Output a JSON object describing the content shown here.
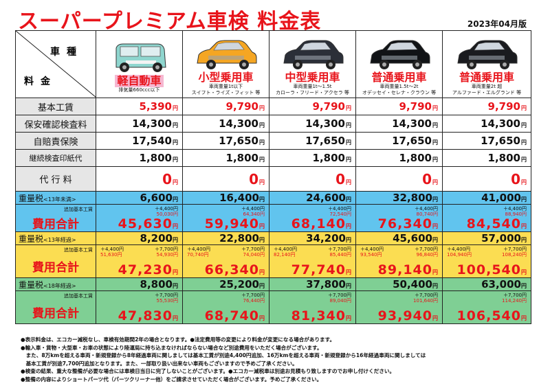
{
  "title": "スーパープレミアム車検 料金表",
  "date": "2023年04月版",
  "corner": {
    "top": "車種",
    "bottom": "料金"
  },
  "vehicles": [
    {
      "name": "軽自動車",
      "desc1": "排気量660ccc以下",
      "desc2": "",
      "color": "#8fd6cf"
    },
    {
      "name": "小型乗用車",
      "desc1": "車両重量1t以下",
      "desc2": "スイフト・ライズ・フィット 等",
      "color": "#f5a623"
    },
    {
      "name": "中型乗用車",
      "desc1": "車両重量1t～1.5t",
      "desc2": "カローラ・フリード・アクセラ 等",
      "color": "#2b2f38"
    },
    {
      "name": "普通乗用車",
      "desc1": "車両重量1.5t～2t",
      "desc2": "オデッセイ・セレナ・クラウン 等",
      "color": "#111316"
    },
    {
      "name": "普通乗用車",
      "desc1": "車両重量2t 超",
      "desc2": "アルファード・エルグランド 等",
      "color": "#1a1b1f"
    }
  ],
  "yen": "円",
  "rows": [
    {
      "label": "基本工賃",
      "values": [
        "5,390",
        "9,790",
        "9,790",
        "9,790",
        "9,790"
      ],
      "red": true
    },
    {
      "label": "保安確認検査料",
      "values": [
        "14,300",
        "14,300",
        "14,300",
        "14,300",
        "14,300"
      ]
    },
    {
      "label": "自賠責保険",
      "values": [
        "17,540",
        "17,650",
        "17,650",
        "17,650",
        "17,650"
      ]
    },
    {
      "label": "継続検査印紙代",
      "values": [
        "1,800",
        "1,800",
        "1,800",
        "1,800",
        "1,800"
      ]
    },
    {
      "label": "代 行 料",
      "values": [
        "0",
        "0",
        "0",
        "0",
        "0"
      ]
    }
  ],
  "bands": [
    {
      "tax_label": "重量税",
      "tax_note": "<13年未満>",
      "taxes": [
        "6,600",
        "16,400",
        "24,600",
        "32,800",
        "41,000"
      ],
      "sub_label": "追加基本工賃",
      "total_label": "費用合計",
      "adds": [
        "＋4,400円",
        "＋4,400円",
        "＋4,400円",
        "＋4,400円",
        "＋4,400円"
      ],
      "sums": [
        "50,030円",
        "64,340円",
        "72,540円",
        "80,740円",
        "88,940円"
      ],
      "adds2": [
        "",
        "",
        "",
        "",
        ""
      ],
      "sums2": [
        "",
        "",
        "",
        "",
        ""
      ],
      "totals": [
        "45,630",
        "59,940",
        "68,140",
        "76,340",
        "84,540"
      ]
    },
    {
      "tax_label": "重量税",
      "tax_note": "<13年経過>",
      "taxes": [
        "8,200",
        "22,800",
        "34,200",
        "45,600",
        "57,000"
      ],
      "sub_label": "追加基本工賃",
      "total_label": "費用合計",
      "adds": [
        "＋4,400円",
        "＋4,400円",
        "＋4,400円",
        "＋4,400円",
        "＋4,400円"
      ],
      "sums": [
        "51,630円",
        "70,740円",
        "82,140円",
        "93,540円",
        "104,940円"
      ],
      "adds2": [
        "＋7,700円",
        "＋7,700円",
        "＋7,700円",
        "＋7,700円",
        "＋7,700円"
      ],
      "sums2": [
        "54,930円",
        "74,040円",
        "85,440円",
        "96,840円",
        "108,240円"
      ],
      "totals": [
        "47,230",
        "66,340",
        "77,740",
        "89,140",
        "100,540"
      ]
    },
    {
      "tax_label": "重量税",
      "tax_note": "<18年経過>",
      "taxes": [
        "8,800",
        "25,200",
        "37,800",
        "50,400",
        "63,000"
      ],
      "sub_label": "追加基本工賃",
      "total_label": "費用合計",
      "adds": [
        "",
        "",
        "",
        "",
        ""
      ],
      "sums": [
        "",
        "",
        "",
        "",
        ""
      ],
      "adds2": [
        "＋7,700円",
        "＋7,700円",
        "＋7,700円",
        "＋7,700円",
        "＋7,700円"
      ],
      "sums2": [
        "55,530円",
        "76,440円",
        "89,040円",
        "101,640円",
        "114,240円"
      ],
      "totals": [
        "47,830",
        "68,740",
        "81,340",
        "93,940",
        "106,540"
      ]
    }
  ],
  "notes": [
    "●表示料金は、エコカー減税なし、車検有効期間2年の場合となります。●法定費用等の変更により料金が変更になる場合があります。",
    "●輸入車・貨物・大型車・お車の状態により陸運局に持ち込まなければならない場合など別途費用をいただく場合がございます。",
    "　また、8万kmを超える車両・新規登録から8年経過車両に関しましては基本工賃が別途4,400円追加、16万kmを超える車両・新規登録から16年経過車両に関しましては",
    "　基本工賃が別途7,700円追加となります。また、一部取り扱い出来ない車両もございますので予めご了承ください。",
    "●検査の結果、重大な整備が必要な場合には車検日当日に完了しないことがございます。●エコカー減税車は別途お見積もり致しますのでお申し付けください。",
    "●整備の内容によりショートパーツ代（パーツクリーナー他）をご請求させていただく場合がございます。予めご了承ください。"
  ]
}
